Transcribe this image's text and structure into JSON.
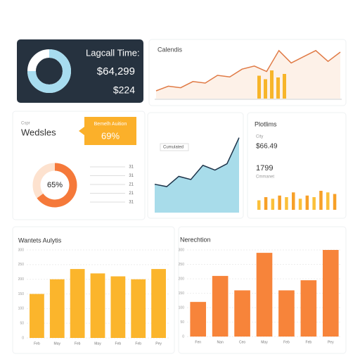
{
  "summary_card": {
    "title": "Lagcall Time:",
    "value": "$64,299",
    "subvalue": "$224",
    "donut_percent": 75
  },
  "trend_card": {
    "title": "Calendis",
    "line": [
      10,
      16,
      14,
      22,
      20,
      30,
      28,
      38,
      42,
      35,
      62,
      46,
      54,
      62,
      48,
      60
    ],
    "bars": [
      65,
      55,
      80,
      60,
      70
    ]
  },
  "weekly_card": {
    "label": "Cspr",
    "title": "Wedsles",
    "callout_title": "Bemelh Auition",
    "callout_value": "69%",
    "donut_label": "65%",
    "donut_percent": 65,
    "list": [
      "31",
      "31",
      "21",
      "21",
      "31"
    ]
  },
  "area_card": {
    "label": "Cumulated",
    "values": [
      36,
      33,
      46,
      42,
      60,
      54,
      62,
      95
    ]
  },
  "profit_card": {
    "title": "Plotlims",
    "label": "City",
    "value": "$66.49",
    "count": "1799",
    "count_label": "Cmmanet",
    "bars": [
      30,
      40,
      35,
      45,
      40,
      55,
      35,
      45,
      40,
      60,
      55,
      50
    ]
  },
  "charts": [
    {
      "type": "bar",
      "title": "Wantets Aulytis",
      "color": "#fbb52c",
      "categories": [
        "Feb",
        "May",
        "Feb",
        "May",
        "Feb",
        "Feb",
        "Pey"
      ],
      "values": [
        150,
        200,
        235,
        220,
        210,
        200,
        235
      ],
      "ylim": [
        0,
        300
      ],
      "yticks": [
        0,
        50,
        100,
        150,
        200,
        250,
        300
      ]
    },
    {
      "type": "bar",
      "title": "Nerechtion",
      "color": "#f7843a",
      "categories": [
        "Fen",
        "Nan",
        "Ceo",
        "May",
        "Feb",
        "Feb",
        "Pey"
      ],
      "values": [
        120,
        210,
        160,
        290,
        160,
        195,
        300
      ],
      "ylim": [
        0,
        300
      ],
      "yticks": [
        0,
        50,
        100,
        150,
        200,
        250,
        300
      ]
    }
  ]
}
